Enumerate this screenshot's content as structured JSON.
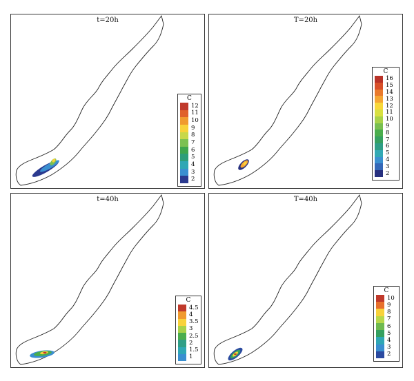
{
  "panels": [
    {
      "title": "t=20h",
      "legend": {
        "title": "C",
        "labels": [
          "12",
          "11",
          "10",
          "9",
          "8",
          "7",
          "6",
          "5",
          "4",
          "3",
          "2"
        ],
        "colors": [
          "#c0392b",
          "#e0602a",
          "#f09a2e",
          "#f8d23a",
          "#c8d84a",
          "#7cc152",
          "#3fa64e",
          "#2e9e7a",
          "#2fa7b5",
          "#3a8fd0",
          "#2b3a8f"
        ]
      }
    },
    {
      "title": "T=20h",
      "legend": {
        "title": "C",
        "labels": [
          "16",
          "15",
          "14",
          "13",
          "12",
          "11",
          "10",
          "9",
          "8",
          "7",
          "6",
          "5",
          "4",
          "3",
          "2"
        ],
        "colors": [
          "#b83228",
          "#d8502a",
          "#ea7a2c",
          "#f5a633",
          "#f8d83a",
          "#d8e040",
          "#a8d248",
          "#78bf50",
          "#4aad4c",
          "#35a060",
          "#2f9e86",
          "#32a9b4",
          "#3a90d0",
          "#3468b8",
          "#27307f"
        ]
      }
    },
    {
      "title": "t=40h",
      "legend": {
        "title": "C",
        "labels": [
          "4.5",
          "4",
          "3.5",
          "3",
          "2.5",
          "2",
          "1.5",
          "1"
        ],
        "colors": [
          "#c0392b",
          "#f09a2e",
          "#f8d23a",
          "#a8d248",
          "#4aad4c",
          "#2f9e86",
          "#2fa7b5",
          "#3a8fd0"
        ]
      }
    },
    {
      "title": "T=40h",
      "legend": {
        "title": "C",
        "labels": [
          "10",
          "9",
          "8",
          "7",
          "6",
          "5",
          "4",
          "3",
          "2"
        ],
        "colors": [
          "#c0392b",
          "#e8702c",
          "#f8d23a",
          "#b8d84a",
          "#6fba50",
          "#35a060",
          "#2fa7b5",
          "#3a8fd0",
          "#2b4aa0"
        ]
      }
    }
  ]
}
